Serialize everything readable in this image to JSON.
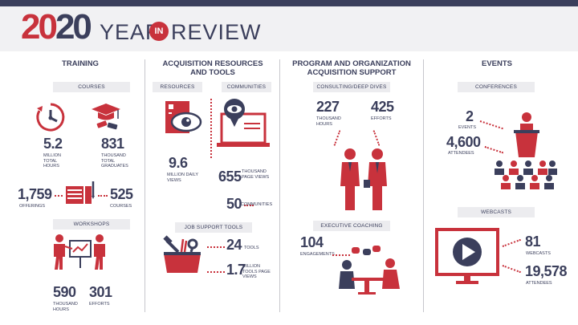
{
  "header": {
    "year_part1": "20",
    "year_part2": "20",
    "word_year": "YEAR",
    "word_in": "IN",
    "word_review": "REVIEW"
  },
  "training": {
    "title": "TRAINING",
    "courses_pill": "COURSES",
    "hours_value": "5.2",
    "hours_label": "MILLION TOTAL HOURS",
    "graduates_value": "831",
    "graduates_label": "THOUSAND TOTAL GRADUATES",
    "offerings_value": "1,759",
    "offerings_label": "OFFERINGS",
    "courses_value": "525",
    "courses_label": "COURSES",
    "workshops_pill": "WORKSHOPS",
    "ws_hours_value": "590",
    "ws_hours_label": "THOUSAND HOURS",
    "ws_efforts_value": "301",
    "ws_efforts_label": "EFFORTS"
  },
  "acquisition": {
    "title_line1": "ACQUISITION RESOURCES",
    "title_line2": "AND TOOLS",
    "resources_pill": "RESOURCES",
    "communities_pill": "COMMUNITIES",
    "daily_value": "9.6",
    "daily_label": "MILLION DAILY VIEWS",
    "page_views_value": "655",
    "page_views_label": "THOUSAND PAGE VIEWS",
    "communities_value": "50",
    "communities_label": "COMMUNITIES",
    "job_pill": "JOB SUPPORT TOOLS",
    "tools_value": "24",
    "tools_label": "TOOLS",
    "tool_views_value": "1.7",
    "tool_views_label": "MILLION TOOLS PAGE VIEWS"
  },
  "program": {
    "title_line1": "PROGRAM AND ORGANIZATION",
    "title_line2": "ACQUISITION SUPPORT",
    "consulting_pill": "CONSULTING/DEEP DIVES",
    "hours_value": "227",
    "hours_label": "THOUSAND HOURS",
    "efforts_value": "425",
    "efforts_label": "EFFORTS",
    "coaching_pill": "EXECUTIVE COACHING",
    "engagements_value": "104",
    "engagements_label": "ENGAGEMENTS"
  },
  "events": {
    "title": "EVENTS",
    "conferences_pill": "CONFERENCES",
    "events_value": "2",
    "events_label": "EVENTS",
    "attendees_value": "4,600",
    "attendees_label": "ATTENDEES",
    "webcasts_pill": "WEBCASTS",
    "webcasts_value": "81",
    "webcasts_label": "WEBCASTS",
    "wc_attendees_value": "19,578",
    "wc_attendees_label": "ATTENDEES"
  },
  "colors": {
    "accent_red": "#c8323c",
    "navy": "#3b3f5c",
    "pill_gray": "#ececef"
  },
  "icons": [
    "clock-icon",
    "graduation-cap-icon",
    "books-icon",
    "presenter-icon",
    "document-eye-icon",
    "laptop-eye-icon",
    "toolbox-icon",
    "business-people-icon",
    "coaching-table-icon",
    "podium-audience-icon",
    "video-play-icon"
  ]
}
